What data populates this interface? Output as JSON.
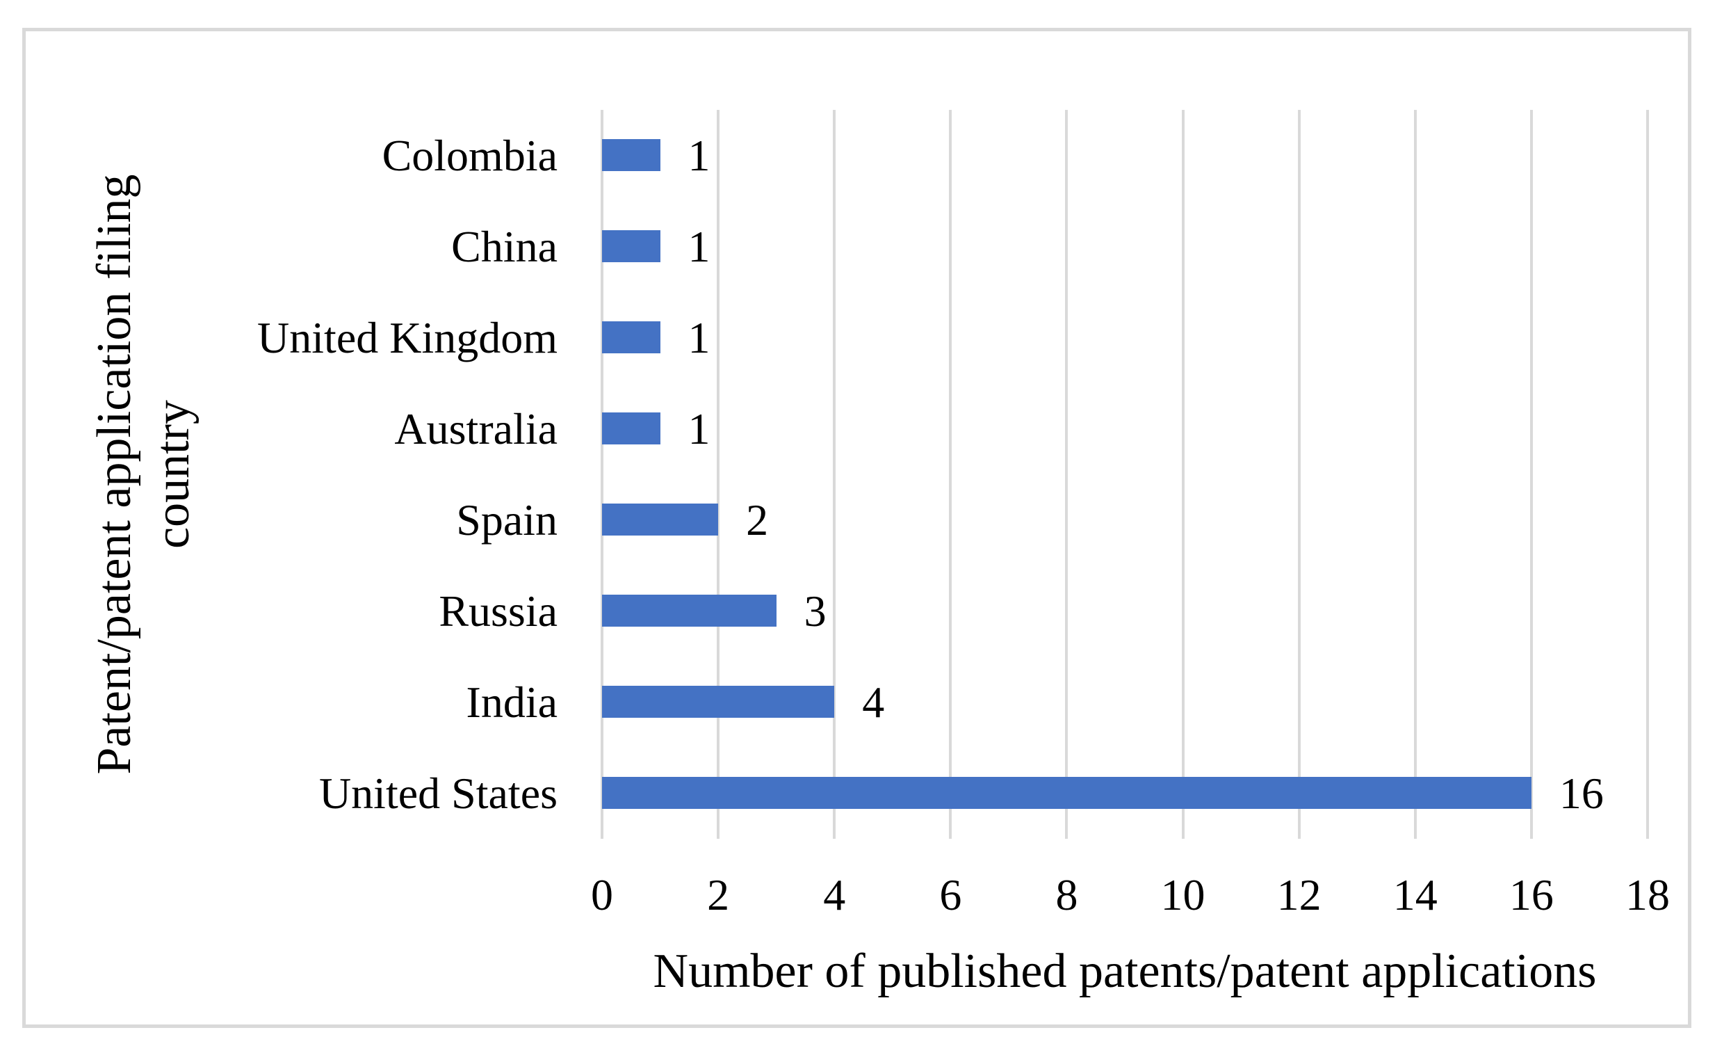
{
  "figure": {
    "background_color": "#ffffff",
    "border_color": "#d9d9d9"
  },
  "chart_data": {
    "type": "bar",
    "orientation": "horizontal",
    "categories": [
      "Colombia",
      "China",
      "United Kingdom",
      "Australia",
      "Spain",
      "Russia",
      "India",
      "United States"
    ],
    "values": [
      1,
      1,
      1,
      1,
      2,
      3,
      4,
      16
    ],
    "value_labels": [
      "1",
      "1",
      "1",
      "1",
      "2",
      "3",
      "4",
      "16"
    ],
    "xlabel": "Number of published patents/patent applications",
    "ylabel": "Patent/patent application filing country",
    "ylabel_lines": [
      "Patent/patent application filing",
      "country"
    ],
    "xlim": [
      0,
      18
    ],
    "xticks": [
      0,
      2,
      4,
      6,
      8,
      10,
      12,
      14,
      16,
      18
    ],
    "grid": "vertical-major-on",
    "legend_position": "none",
    "bar_color": "#4472c4",
    "gridline_color": "#d9d9d9",
    "text_color": "#000000"
  }
}
